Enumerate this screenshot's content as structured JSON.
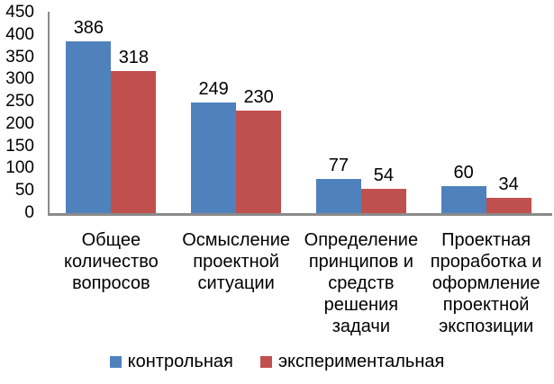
{
  "chart_data": {
    "type": "bar",
    "title": "",
    "xlabel": "",
    "ylabel": "",
    "ylim": [
      0,
      450
    ],
    "ytick_step": 50,
    "yticks": [
      450,
      400,
      350,
      300,
      250,
      200,
      150,
      100,
      50,
      0
    ],
    "grid": false,
    "legend_position": "bottom",
    "categories": [
      "Общее количество вопросов",
      "Осмысление проектной ситуации",
      "Определение принципов и средств решения задачи",
      "Проектная проработка и оформление проектной экспозиции"
    ],
    "categories_wrapped": [
      "Общее\nколичество\nвопросов",
      "Осмысление\nпроектной\nситуации",
      "Определение\nпринципов и\nсредств\nрешения\nзадачи",
      "Проектная\nпроработка и\nоформление\nпроектной\nэкспозиции"
    ],
    "series": [
      {
        "name": "контрольная",
        "color": "#4F81BD",
        "values": [
          386,
          249,
          77,
          60
        ]
      },
      {
        "name": "экспериментальная",
        "color": "#C0504D",
        "values": [
          318,
          230,
          54,
          34
        ]
      }
    ]
  },
  "colors": {
    "axis_line": "#8A8A8A",
    "text": "#000000",
    "background": "#FFFFFF"
  }
}
